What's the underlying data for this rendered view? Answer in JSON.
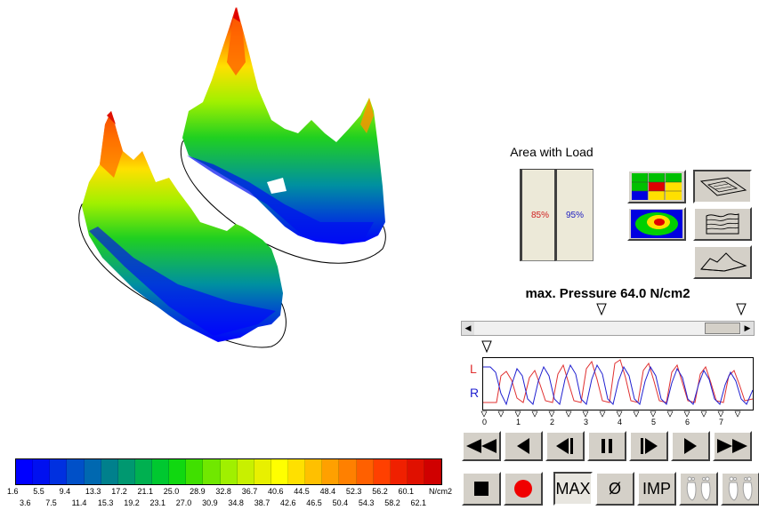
{
  "area": {
    "title": "Area with Load",
    "left_value": "85%",
    "right_value": "95%",
    "left_fraction": 0.85,
    "right_fraction": 0.95
  },
  "max_pressure": "max. Pressure 64.0 N/cm2",
  "trace": {
    "left_label": "L",
    "right_label": "R",
    "ticks": [
      "0",
      "1",
      "2",
      "3",
      "4",
      "5",
      "6",
      "7"
    ],
    "left_color": "#e03030",
    "right_color": "#2020d0"
  },
  "playback": [
    "rewind",
    "step-back",
    "frame-back",
    "pause",
    "frame-forward",
    "play",
    "fast-forward"
  ],
  "bottom_buttons": {
    "max": "MAX",
    "avg": "Ø",
    "imp": "IMP"
  },
  "legend": {
    "unit": "N/cm2",
    "top_row": [
      "1.6",
      "5.5",
      "9.4",
      "13.3",
      "17.2",
      "21.1",
      "25.0",
      "28.9",
      "32.8",
      "36.7",
      "40.6",
      "44.5",
      "48.4",
      "52.3",
      "56.2",
      "60.1"
    ],
    "bottom_row": [
      "3.6",
      "7.5",
      "11.4",
      "15.3",
      "19.2",
      "23.1",
      "27.0",
      "30.9",
      "34.8",
      "38.7",
      "42.6",
      "46.5",
      "50.4",
      "54.3",
      "58.2",
      "62.1"
    ],
    "colors": [
      "#0000ff",
      "#0010f0",
      "#0030e0",
      "#0050c8",
      "#0068b0",
      "#00808c",
      "#009870",
      "#00b050",
      "#00c830",
      "#10d810",
      "#40e000",
      "#70e800",
      "#a0f000",
      "#c8f000",
      "#e8f000",
      "#ffff00",
      "#ffe000",
      "#ffc000",
      "#ffa000",
      "#ff8000",
      "#ff6000",
      "#ff4000",
      "#f02000",
      "#e01000",
      "#d00000"
    ]
  }
}
